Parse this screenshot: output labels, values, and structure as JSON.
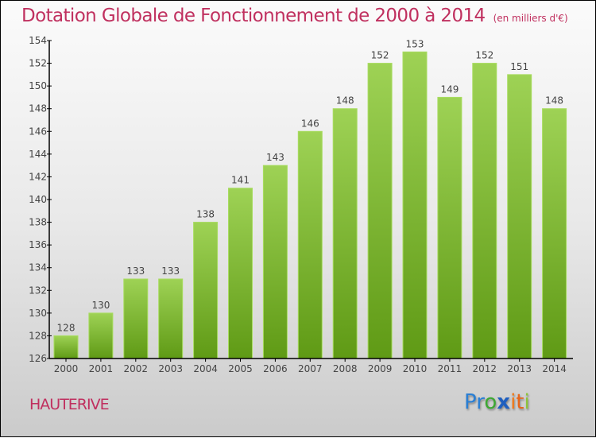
{
  "header": {
    "title": "Dotation Globale de Fonctionnement de 2000 à 2014",
    "unit": "(en milliers d'€)"
  },
  "footer": {
    "city": "HAUTERIVE",
    "logo": {
      "letters": [
        {
          "char": "P",
          "color": "#2a7fd4"
        },
        {
          "char": "r",
          "color": "#2a7fd4"
        },
        {
          "char": "o",
          "color": "#3da832"
        },
        {
          "char": "x",
          "color": "#1f5fbf"
        },
        {
          "char": "i",
          "color": "#f07a1a"
        },
        {
          "char": "t",
          "color": "#e8651a"
        },
        {
          "char": "i",
          "color": "#8cc43a"
        }
      ]
    }
  },
  "colors": {
    "title": "#c0305f",
    "bar_top": "#9ed255",
    "bar_bottom": "#5f9a15"
  },
  "chart_data": {
    "type": "bar",
    "title": "Dotation Globale de Fonctionnement de 2000 à 2014",
    "subtitle": "(en milliers d'€)",
    "xlabel": "",
    "ylabel": "",
    "categories": [
      "2000",
      "2001",
      "2002",
      "2003",
      "2004",
      "2005",
      "2006",
      "2007",
      "2008",
      "2009",
      "2010",
      "2011",
      "2012",
      "2013",
      "2014"
    ],
    "values": [
      128,
      130,
      133,
      133,
      138,
      141,
      143,
      146,
      148,
      152,
      153,
      149,
      152,
      151,
      148
    ],
    "ylim": [
      126,
      154
    ],
    "yticks": [
      126,
      128,
      130,
      132,
      134,
      136,
      138,
      140,
      142,
      144,
      146,
      148,
      150,
      152,
      154
    ],
    "grid": false,
    "legend": "none",
    "data_labels": true
  }
}
